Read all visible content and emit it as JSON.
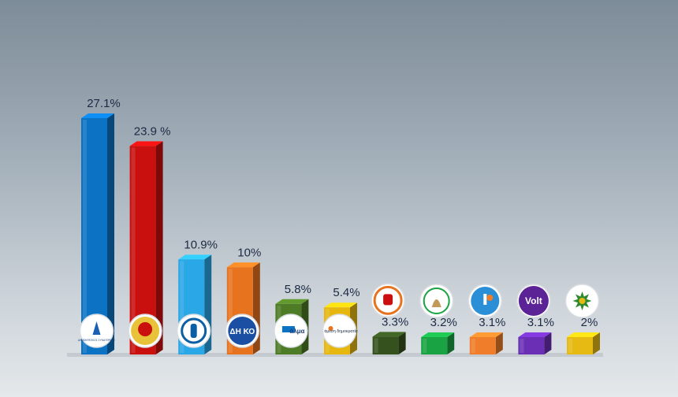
{
  "chart_data": {
    "type": "bar",
    "title": "",
    "xlabel": "",
    "ylabel": "",
    "ylim": [
      0,
      27.1
    ],
    "grid": false,
    "legend": "none",
    "categories": [
      "ΔΗΣΥ",
      "ΑΚΕΛ",
      "ΕΛΑΜ",
      "ΔΗΚΟ",
      "ΑΛΜΑ",
      "Άμεση Δημοκρατία",
      "ΕΔΕΚ",
      "ΔΗΠΑ",
      "Οικολόγοι",
      "Volt",
      "Δύναμη των Πολιτών"
    ],
    "values": [
      27.1,
      23.9,
      10.9,
      10.0,
      5.8,
      5.4,
      3.3,
      3.2,
      3.1,
      3.1,
      2.0
    ],
    "labels": [
      "27.1%",
      "23.9 %",
      "10.9%",
      "10%",
      "5.8%",
      "5.4%",
      "3.3%",
      "3.2%",
      "3.1%",
      "3.1%",
      "2%"
    ],
    "colors": [
      "#0b72c4",
      "#c9100f",
      "#2aa7e6",
      "#e8731f",
      "#4e7b25",
      "#e6b80f",
      "#35521e",
      "#1aa343",
      "#ef7d2a",
      "#6a2fb4",
      "#e7b913"
    ],
    "logo_on_bar": [
      true,
      true,
      true,
      true,
      true,
      true,
      false,
      false,
      false,
      false,
      false
    ],
    "logos": [
      {
        "icon": "disy-logo",
        "text": "ΔΗΜΟΚΡΑΤΙΚΟΣ ΣΥΝΑΓΕΡΜΟΣ"
      },
      {
        "icon": "akel-logo",
        "text": "ΑΚΕΛ"
      },
      {
        "icon": "elam-logo",
        "text": ""
      },
      {
        "icon": "diko-logo",
        "text": "ΔΗ ΚΟ"
      },
      {
        "icon": "alma-logo",
        "text": "άλμα"
      },
      {
        "icon": "ameso-logo",
        "text": "άμεση δημοκρατία"
      },
      {
        "icon": "edek-fist-logo",
        "text": ""
      },
      {
        "icon": "dipa-logo",
        "text": ""
      },
      {
        "icon": "ecologists-logo",
        "text": ""
      },
      {
        "icon": "volt-logo",
        "text": "Volt"
      },
      {
        "icon": "star-seal-logo",
        "text": ""
      }
    ]
  }
}
